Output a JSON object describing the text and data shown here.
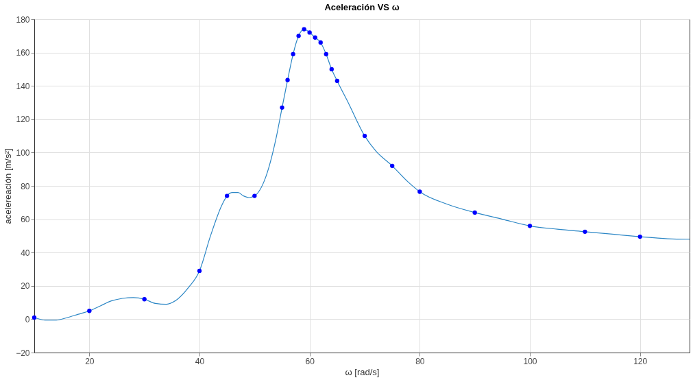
{
  "chart_data": {
    "type": "line",
    "title": "Aceleración VS ω",
    "xlabel": "ω [rad/s]",
    "ylabel": "acelereación [m/s²]",
    "xlim": [
      10,
      129
    ],
    "xticks": [
      20,
      40,
      60,
      80,
      100,
      120
    ],
    "ylim": [
      -20,
      180
    ],
    "yticks": [
      -20,
      0,
      20,
      40,
      60,
      80,
      100,
      120,
      140,
      160,
      180
    ],
    "grid": true,
    "series": [
      {
        "color": "#2b86c5",
        "marker": "none",
        "x": [
          10,
          12,
          14,
          16,
          18,
          20,
          22,
          24,
          26,
          28,
          30,
          32,
          34,
          36,
          38,
          40,
          42,
          44,
          45,
          46,
          47,
          48,
          49,
          50,
          52,
          54,
          55,
          56,
          57,
          58,
          59,
          60,
          61,
          62,
          63,
          64,
          65,
          67,
          70,
          72,
          75,
          78,
          80,
          85,
          90,
          95,
          100,
          105,
          110,
          115,
          120,
          125,
          129
        ],
        "values": [
          1,
          -0.5,
          -0.5,
          1,
          3,
          5,
          8,
          11,
          12.5,
          13,
          12,
          9.5,
          9,
          12,
          19,
          29,
          50,
          68,
          74,
          76,
          76,
          74,
          73,
          74,
          85,
          110,
          127,
          143.5,
          159,
          170,
          174,
          172,
          169,
          166,
          159,
          150,
          143,
          130,
          110,
          101,
          92,
          82,
          76.5,
          69,
          64,
          60,
          56,
          54,
          52.5,
          51,
          49.5,
          48.3,
          48
        ]
      },
      {
        "type": "scatter",
        "color": "#0000ff",
        "marker": "circle",
        "x": [
          10,
          20,
          30,
          40,
          45,
          50,
          55,
          56,
          57,
          58,
          59,
          60,
          61,
          62,
          63,
          64,
          65,
          70,
          75,
          80,
          90,
          100,
          110,
          120
        ],
        "values": [
          1,
          5,
          12,
          29,
          74,
          74,
          127,
          143.5,
          159,
          170,
          174,
          172,
          169,
          166,
          159,
          150,
          143,
          110,
          92,
          76.5,
          64,
          56,
          52.5,
          49.5
        ]
      }
    ]
  }
}
